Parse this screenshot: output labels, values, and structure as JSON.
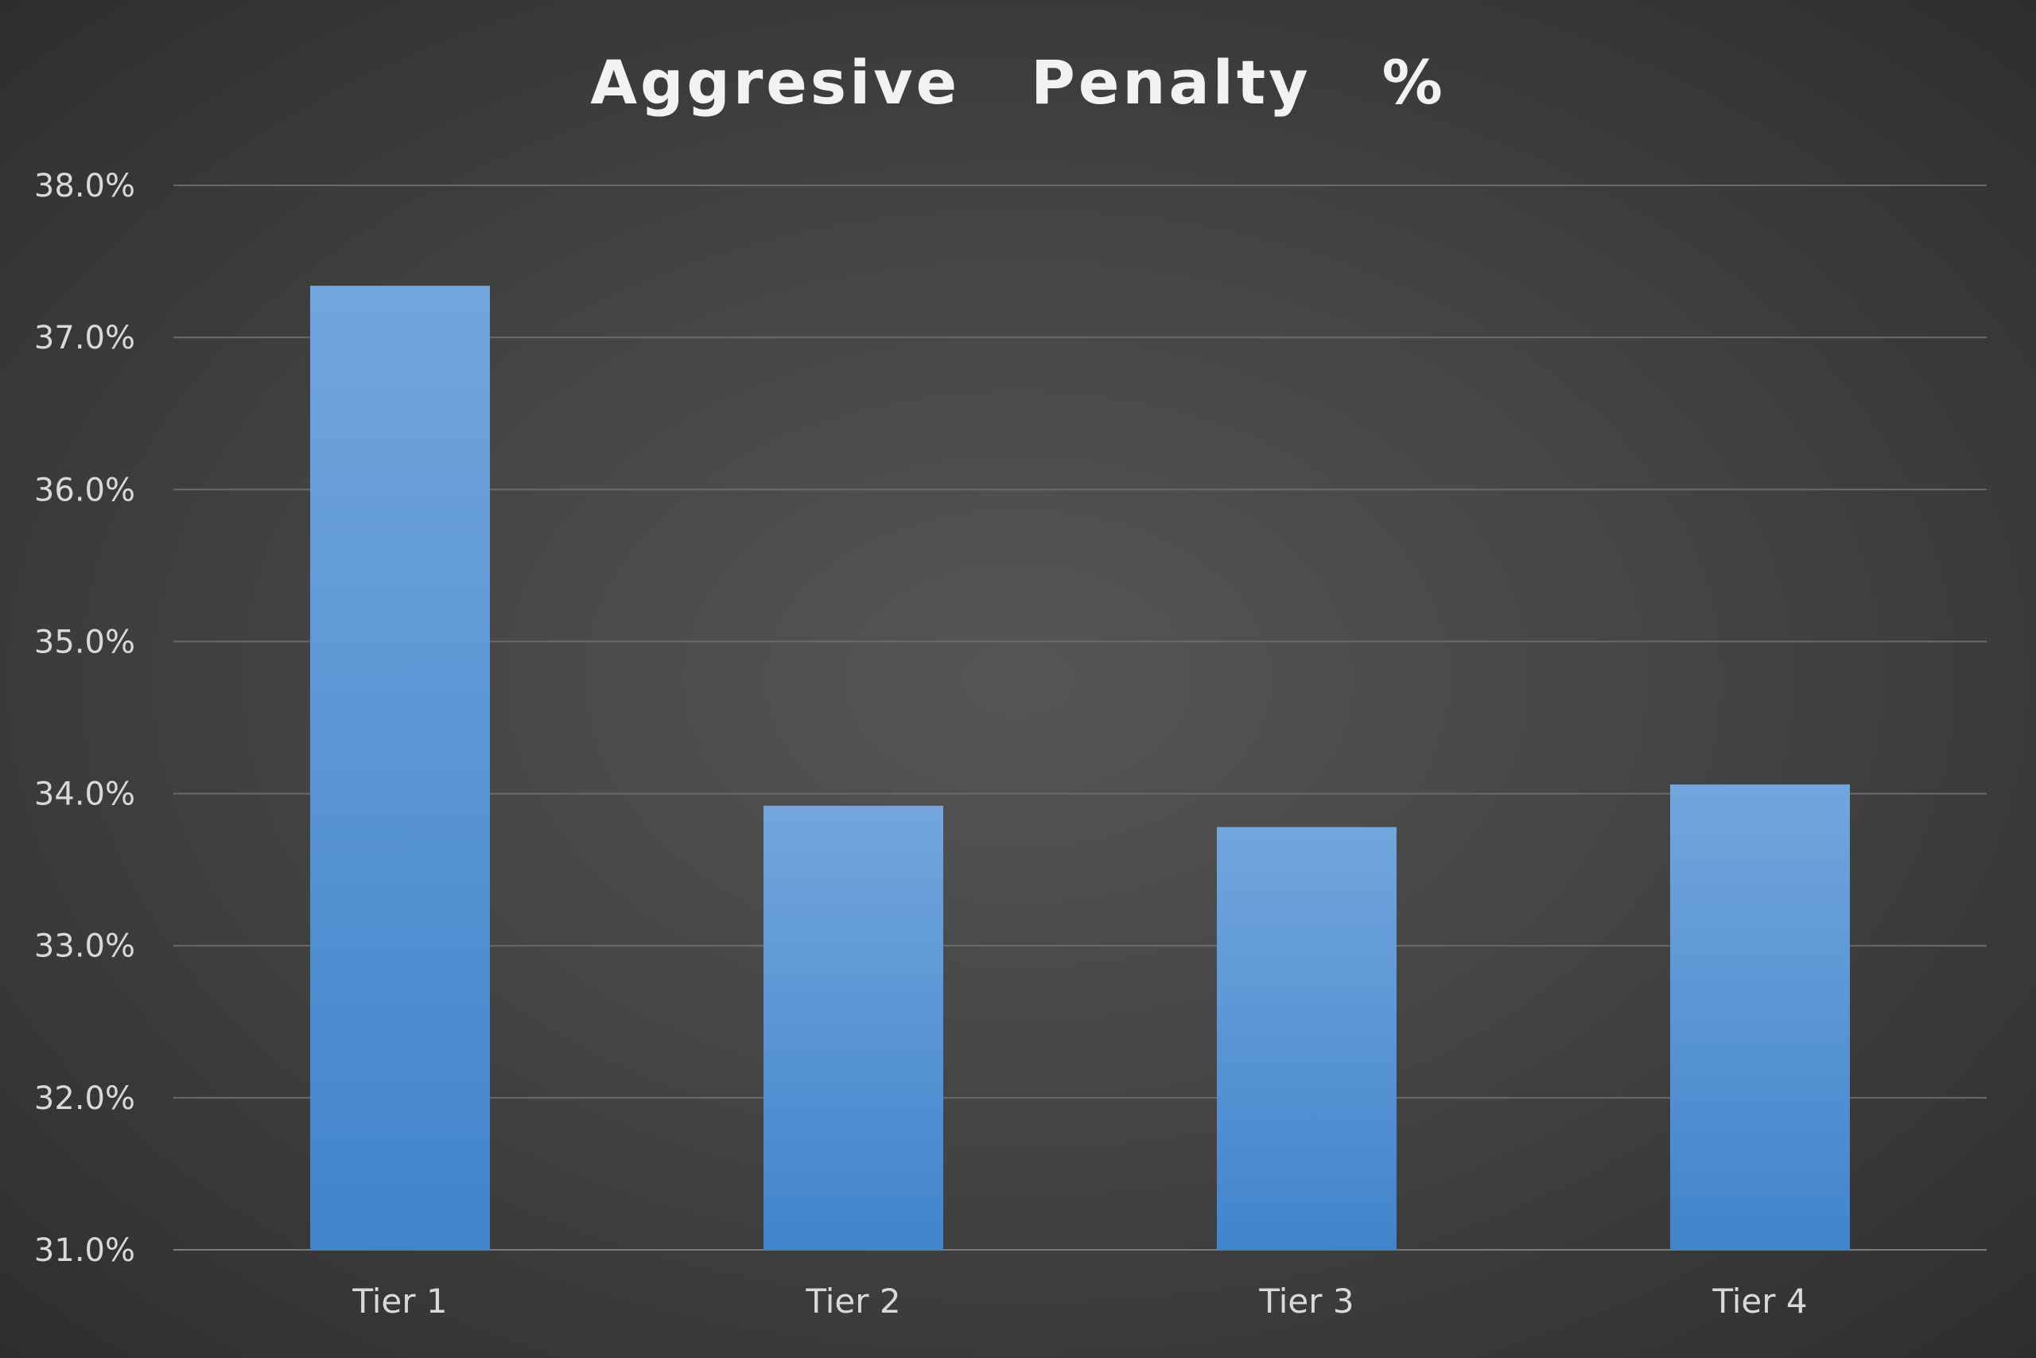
{
  "chart_data": {
    "type": "bar",
    "title": "Aggresive  Penalty  %",
    "categories": [
      "Tier 1",
      "Tier 2",
      "Tier 3",
      "Tier 4"
    ],
    "values": [
      37.34,
      33.92,
      33.78,
      34.06
    ],
    "ylim": [
      31.0,
      38.0
    ],
    "yticks": [
      "31.0%",
      "32.0%",
      "33.0%",
      "34.0%",
      "35.0%",
      "36.0%",
      "37.0%",
      "38.0%"
    ],
    "grid": true,
    "legend": "none",
    "colors": {
      "bar_top": "#72a6dd",
      "bar_bottom": "#4184cc"
    }
  }
}
